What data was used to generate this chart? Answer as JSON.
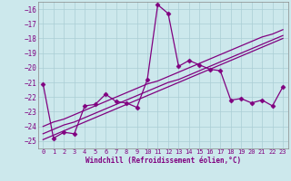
{
  "x_data": [
    0,
    1,
    2,
    3,
    4,
    5,
    6,
    7,
    8,
    9,
    10,
    11,
    12,
    13,
    14,
    15,
    16,
    17,
    18,
    19,
    20,
    21,
    22,
    23
  ],
  "y_main": [
    -21.1,
    -24.8,
    -24.4,
    -24.5,
    -22.6,
    -22.5,
    -21.8,
    -22.3,
    -22.4,
    -22.7,
    -20.8,
    -15.7,
    -16.3,
    -19.9,
    -19.5,
    -19.8,
    -20.1,
    -20.2,
    -22.2,
    -22.1,
    -22.4,
    -22.2,
    -22.6,
    -21.3
  ],
  "y_line1": [
    -24.9,
    -24.6,
    -24.3,
    -24.0,
    -23.7,
    -23.4,
    -23.1,
    -22.8,
    -22.5,
    -22.2,
    -21.9,
    -21.6,
    -21.3,
    -21.0,
    -20.7,
    -20.4,
    -20.1,
    -19.8,
    -19.5,
    -19.2,
    -18.9,
    -18.6,
    -18.3,
    -18.0
  ],
  "y_line2": [
    -24.5,
    -24.2,
    -23.9,
    -23.7,
    -23.4,
    -23.1,
    -22.8,
    -22.5,
    -22.2,
    -21.9,
    -21.6,
    -21.3,
    -21.0,
    -20.8,
    -20.5,
    -20.2,
    -19.9,
    -19.6,
    -19.3,
    -19.0,
    -18.7,
    -18.4,
    -18.1,
    -17.8
  ],
  "y_line3": [
    -24.0,
    -23.7,
    -23.5,
    -23.2,
    -22.9,
    -22.6,
    -22.3,
    -22.0,
    -21.7,
    -21.4,
    -21.1,
    -20.9,
    -20.6,
    -20.3,
    -20.0,
    -19.7,
    -19.4,
    -19.1,
    -18.8,
    -18.5,
    -18.2,
    -17.9,
    -17.7,
    -17.4
  ],
  "line_color": "#800080",
  "bg_color": "#cce8ec",
  "grid_color": "#aacdd4",
  "text_color": "#800080",
  "ylim": [
    -25.5,
    -15.5
  ],
  "xlim": [
    -0.5,
    23.5
  ],
  "yticks": [
    -25,
    -24,
    -23,
    -22,
    -21,
    -20,
    -19,
    -18,
    -17,
    -16
  ],
  "xticks": [
    0,
    1,
    2,
    3,
    4,
    5,
    6,
    7,
    8,
    9,
    10,
    11,
    12,
    13,
    14,
    15,
    16,
    17,
    18,
    19,
    20,
    21,
    22,
    23
  ],
  "xlabel": "Windchill (Refroidissement éolien,°C)",
  "marker": "D",
  "marker_size": 2.5,
  "lw": 0.9
}
